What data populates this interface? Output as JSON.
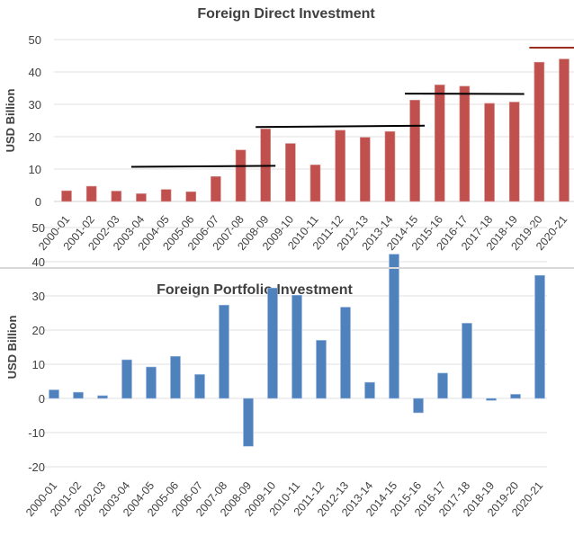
{
  "chart_data": [
    {
      "type": "bar",
      "title": "Foreign Direct Investment",
      "xlabel": "",
      "ylabel": "USD Billion",
      "ylim": [
        0,
        50
      ],
      "yticks": [
        0,
        10,
        20,
        30,
        40,
        50
      ],
      "grid": true,
      "color": "#c0504d",
      "categories": [
        "2000-01",
        "2001-02",
        "2002-03",
        "2003-04",
        "2004-05",
        "2005-06",
        "2006-07",
        "2007-08",
        "2008-09",
        "2009-10",
        "2010-11",
        "2011-12",
        "2012-13",
        "2013-14",
        "2014-15",
        "2015-16",
        "2016-17",
        "2017-18",
        "2018-19",
        "2019-20",
        "2020-21"
      ],
      "values": [
        3.3,
        4.7,
        3.2,
        2.4,
        3.7,
        3.0,
        7.7,
        15.9,
        22.4,
        17.9,
        11.3,
        22.0,
        19.8,
        21.6,
        31.3,
        36.0,
        35.6,
        30.3,
        30.7,
        43.0,
        44.0
      ],
      "annotations": [
        {
          "type": "average-line",
          "from": "2003-04",
          "to": "2008-09",
          "y": [
            10.7,
            11.0
          ],
          "color": "#000000"
        },
        {
          "type": "average-line",
          "from": "2008-09",
          "to": "2014-15",
          "y": [
            23.0,
            23.4
          ],
          "color": "#000000"
        },
        {
          "type": "average-line",
          "from": "2014-15",
          "to": "2018-19",
          "y": [
            33.3,
            33.2
          ],
          "color": "#000000"
        },
        {
          "type": "average-line",
          "from": "2019-20",
          "to": "2020-21",
          "y": [
            47.5,
            47.5
          ],
          "color": "#9b2d1f"
        }
      ]
    },
    {
      "type": "bar",
      "title": "Foreign Portfolio Investment",
      "xlabel": "",
      "ylabel": "USD Billion",
      "ylim": [
        -20,
        50
      ],
      "yticks": [
        -20,
        -10,
        0,
        10,
        20,
        30,
        40,
        50
      ],
      "grid": true,
      "color": "#4f81bd",
      "categories": [
        "2000-01",
        "2001-02",
        "2002-03",
        "2003-04",
        "2004-05",
        "2005-06",
        "2006-07",
        "2007-08",
        "2008-09",
        "2009-10",
        "2010-11",
        "2011-12",
        "2012-13",
        "2013-14",
        "2014-15",
        "2015-16",
        "2016-17",
        "2017-18",
        "2018-19",
        "2019-20",
        "2020-21"
      ],
      "values": [
        2.5,
        1.8,
        0.8,
        11.3,
        9.2,
        12.3,
        7.0,
        27.3,
        -14.0,
        32.3,
        30.2,
        17.0,
        26.7,
        4.7,
        42.2,
        -4.2,
        7.4,
        22.0,
        -0.6,
        1.2,
        36.0
      ]
    }
  ]
}
